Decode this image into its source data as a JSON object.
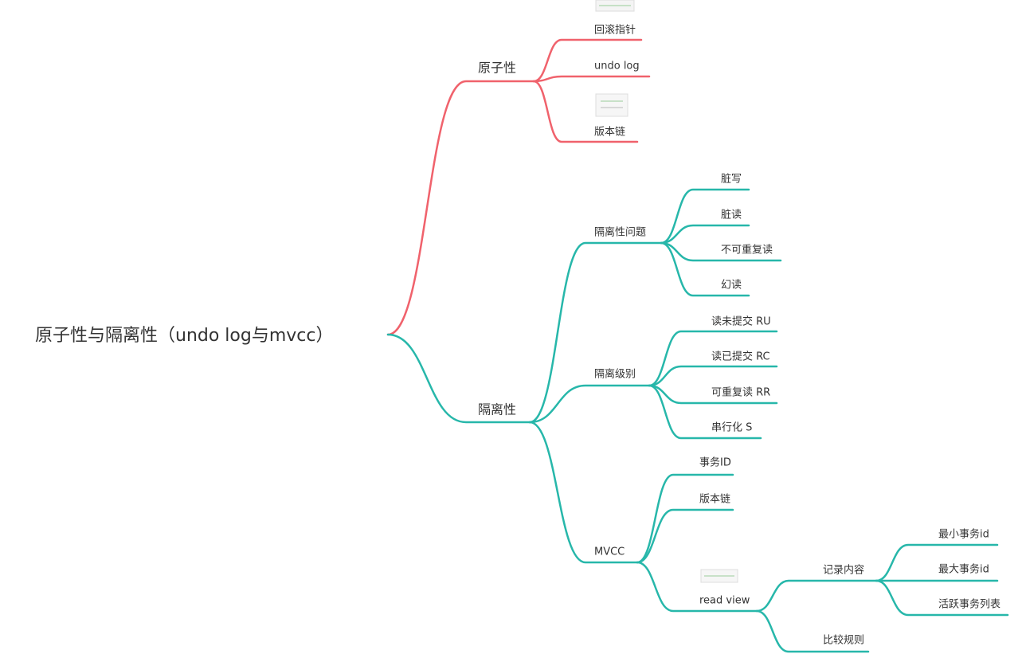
{
  "root": "原子性与隔离性（undo log与mvcc）",
  "branches": [
    {
      "label": "原子性",
      "children": [
        "回滚指针",
        "undo log",
        "版本链"
      ]
    },
    {
      "label": "隔离性",
      "children": [
        {
          "label": "隔离性问题",
          "children": [
            "脏写",
            "脏读",
            "不可重复读",
            "幻读"
          ]
        },
        {
          "label": "隔离级别",
          "children": [
            "读未提交 RU",
            "读已提交 RC",
            "可重复读 RR",
            "串行化 S"
          ]
        },
        {
          "label": "MVCC",
          "children": [
            {
              "label": "事务ID"
            },
            {
              "label": "版本链"
            },
            {
              "label": "read view",
              "children": [
                {
                  "label": "记录内容",
                  "children": [
                    "最小事务id",
                    "最大事务id",
                    "活跃事务列表"
                  ]
                },
                {
                  "label": "比较规则"
                }
              ]
            }
          ]
        }
      ]
    }
  ]
}
